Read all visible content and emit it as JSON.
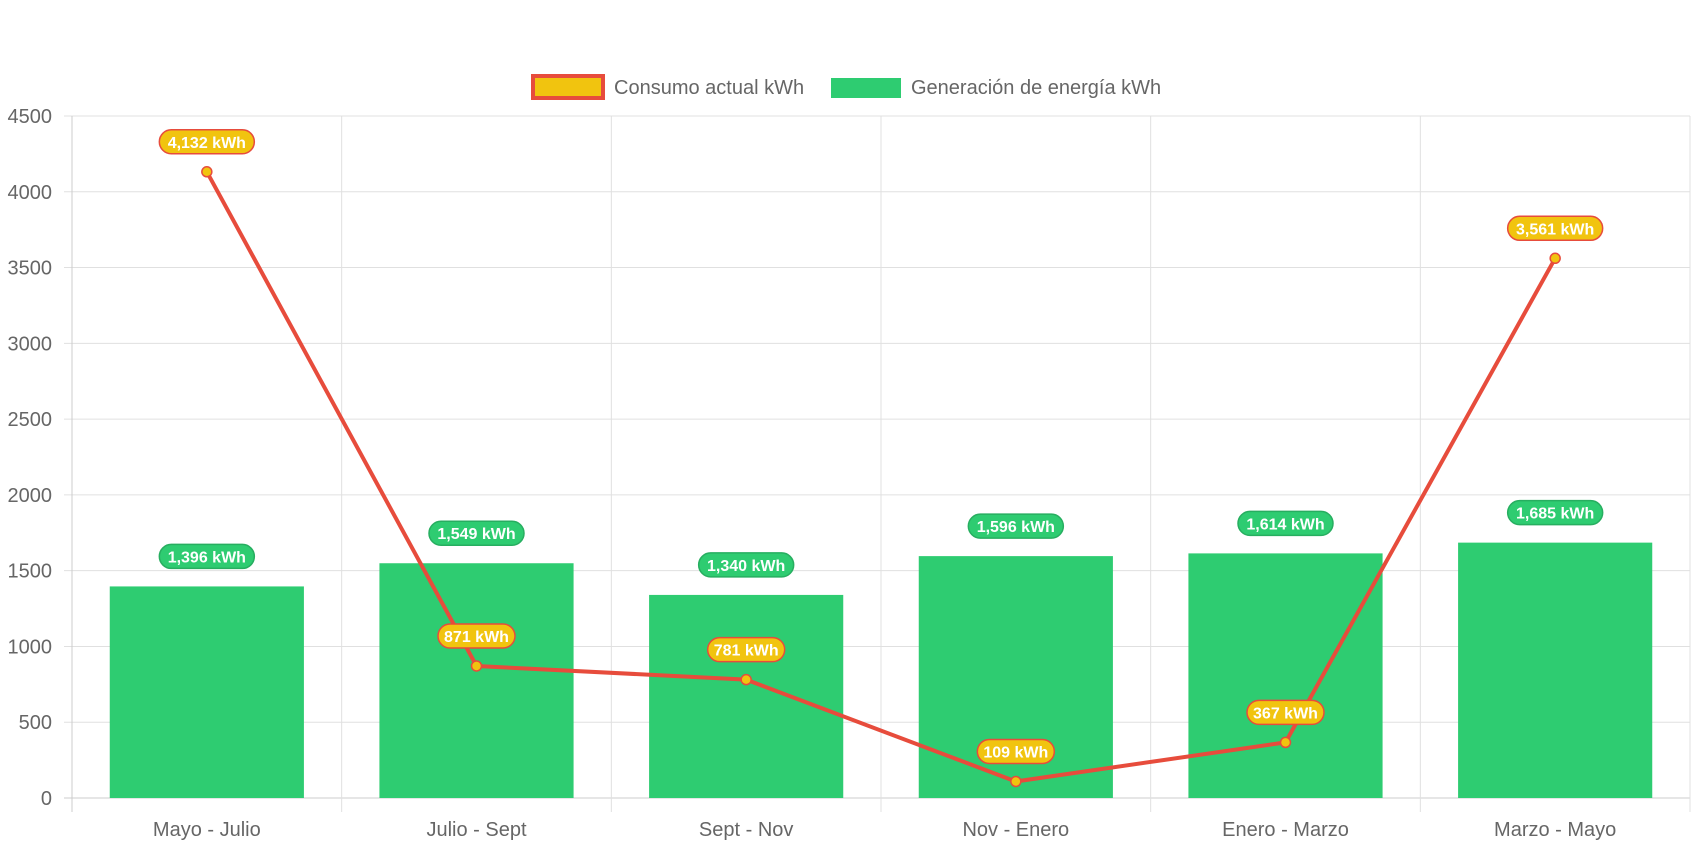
{
  "chart_data": {
    "type": "bar",
    "categories": [
      "Mayo - Julio",
      "Julio - Sept",
      "Sept - Nov",
      "Nov - Enero",
      "Enero - Marzo",
      "Marzo - Mayo"
    ],
    "series": [
      {
        "name": "Consumo actual kWh",
        "kind": "line",
        "values": [
          4132,
          871,
          781,
          109,
          367,
          3561
        ],
        "labels": [
          "4,132 kWh",
          "871 kWh",
          "781 kWh",
          "109 kWh",
          "367 kWh",
          "3,561 kWh"
        ]
      },
      {
        "name": "Generación de energía kWh",
        "kind": "bar",
        "values": [
          1396,
          1549,
          1340,
          1596,
          1614,
          1685
        ],
        "labels": [
          "1,396 kWh",
          "1,549 kWh",
          "1,340 kWh",
          "1,596 kWh",
          "1,614 kWh",
          "1,685 kWh"
        ]
      }
    ],
    "yticks": [
      "0",
      "500",
      "1000",
      "1500",
      "2000",
      "2500",
      "3000",
      "3500",
      "4000",
      "4500"
    ],
    "ylim": [
      0,
      4500
    ],
    "xlabel": "",
    "ylabel": "",
    "title": "",
    "grid": true,
    "legend_position": "top-center"
  },
  "colors": {
    "bar": "#2ecc71",
    "bar_label_border": "#27ae60",
    "line": "#e74c3c",
    "point": "#f1c40f",
    "line_label_fill": "#f1c40f",
    "grid": "#e0e0e0",
    "text": "#666666"
  }
}
